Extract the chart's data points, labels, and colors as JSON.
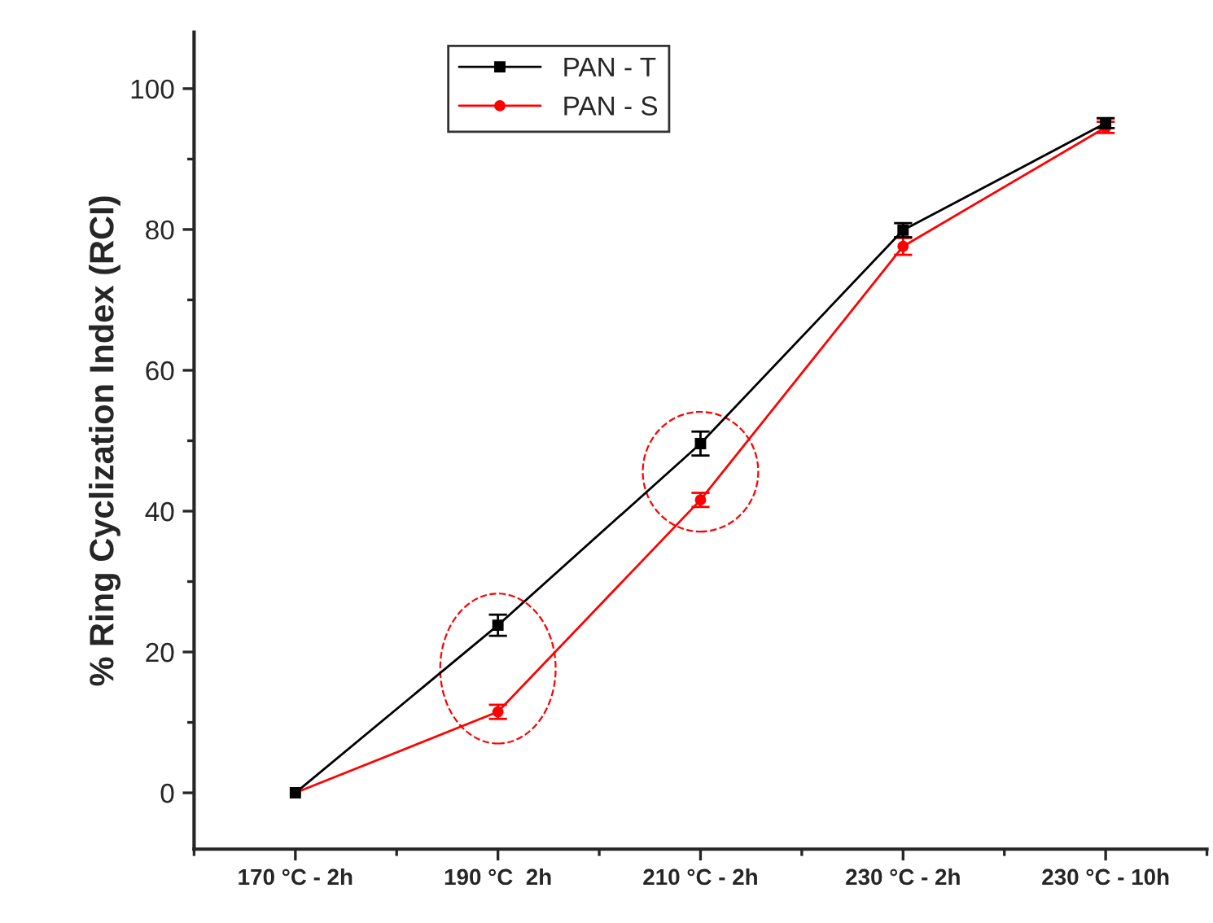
{
  "chart_data": {
    "type": "line",
    "ylabel": "% Ring Cyclization Index (RCI)",
    "categories": [
      "170 °C - 2h",
      "190 °C  2h",
      "210 °C - 2h",
      "230 °C - 2h",
      "230 °C - 10h"
    ],
    "series": [
      {
        "name": "PAN - T",
        "color": "#000000",
        "marker": "square",
        "values": [
          0,
          23.8,
          49.6,
          79.9,
          95.1
        ],
        "errors": [
          null,
          1.5,
          1.7,
          1.0,
          0.7
        ]
      },
      {
        "name": "PAN - S",
        "color": "#ff0000",
        "marker": "circle",
        "values": [
          0,
          11.5,
          41.6,
          77.6,
          94.5
        ],
        "errors": [
          null,
          1.0,
          1.0,
          1.2,
          0.8
        ]
      }
    ],
    "ylim": [
      -8,
      108
    ],
    "yticks": [
      0,
      20,
      40,
      60,
      80,
      100
    ],
    "grid": false,
    "legend": "top",
    "line_style": "solid"
  }
}
